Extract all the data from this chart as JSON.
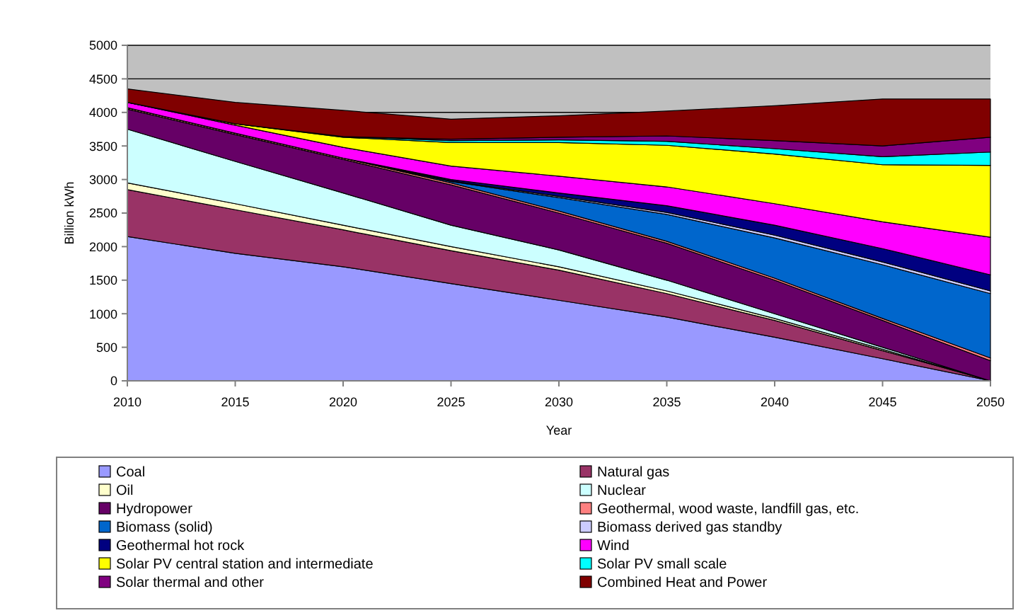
{
  "chart_data": {
    "type": "area",
    "stacked": true,
    "xlabel": "Year",
    "ylabel": "Billion kWh",
    "x": [
      2010,
      2015,
      2020,
      2025,
      2030,
      2035,
      2040,
      2045,
      2050
    ],
    "xlim": [
      2010,
      2050
    ],
    "xticks": [
      2010,
      2015,
      2020,
      2025,
      2030,
      2035,
      2040,
      2045,
      2050
    ],
    "ylim": [
      0,
      5000
    ],
    "yticks": [
      0,
      500,
      1000,
      1500,
      2000,
      2500,
      3000,
      3500,
      4000,
      4500,
      5000
    ],
    "grid": "y",
    "legend": "bottom",
    "series": [
      {
        "name": "Coal",
        "color": "#9999ff",
        "values": [
          2150,
          1900,
          1700,
          1450,
          1200,
          950,
          650,
          330,
          0
        ]
      },
      {
        "name": "Natural gas",
        "color": "#993366",
        "values": [
          700,
          650,
          550,
          490,
          450,
          350,
          250,
          120,
          0
        ]
      },
      {
        "name": "Oil",
        "color": "#ffffcc",
        "values": [
          100,
          90,
          70,
          60,
          50,
          40,
          30,
          20,
          0
        ]
      },
      {
        "name": "Nuclear",
        "color": "#ccffff",
        "values": [
          800,
          630,
          480,
          320,
          250,
          160,
          70,
          30,
          0
        ]
      },
      {
        "name": "Hydropower",
        "color": "#660066",
        "values": [
          300,
          400,
          500,
          600,
          550,
          550,
          500,
          400,
          300
        ]
      },
      {
        "name": "Geothermal, wood waste, landfill gas, etc.",
        "color": "#ff8080",
        "values": [
          20,
          20,
          20,
          30,
          30,
          30,
          30,
          30,
          40
        ]
      },
      {
        "name": "Biomass (solid)",
        "color": "#0066cc",
        "values": [
          0,
          0,
          0,
          20,
          200,
          400,
          600,
          800,
          960
        ]
      },
      {
        "name": "Biomass derived gas standby",
        "color": "#ccccff",
        "values": [
          0,
          0,
          0,
          10,
          20,
          30,
          40,
          40,
          40
        ]
      },
      {
        "name": "Geothermal hot rock",
        "color": "#000080",
        "values": [
          0,
          0,
          0,
          20,
          50,
          100,
          150,
          200,
          240
        ]
      },
      {
        "name": "Wind",
        "color": "#ff00ff",
        "values": [
          80,
          120,
          160,
          200,
          250,
          280,
          320,
          400,
          560
        ]
      },
      {
        "name": "Solar PV central station and intermediate",
        "color": "#ffff00",
        "values": [
          0,
          20,
          150,
          350,
          500,
          620,
          740,
          850,
          1070
        ]
      },
      {
        "name": "Solar PV small scale",
        "color": "#00ffff",
        "values": [
          0,
          0,
          10,
          30,
          40,
          60,
          80,
          120,
          200
        ]
      },
      {
        "name": "Solar thermal and other",
        "color": "#800080",
        "values": [
          0,
          0,
          0,
          20,
          40,
          80,
          120,
          160,
          220
        ]
      },
      {
        "name": "Combined Heat and Power",
        "color": "#800000",
        "values": [
          200,
          320,
          390,
          300,
          320,
          370,
          520,
          700,
          570
        ]
      }
    ]
  }
}
